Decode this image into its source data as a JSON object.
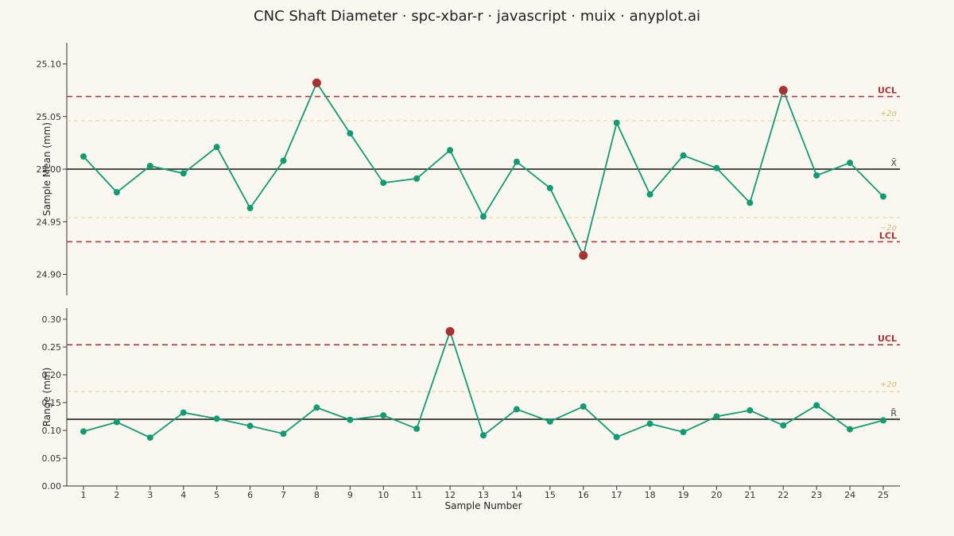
{
  "chart_data": {
    "type": "line",
    "title": "CNC Shaft Diameter · spc-xbar-r · javascript · muix · anyplot.ai",
    "xlabel": "Sample Number",
    "x": [
      1,
      2,
      3,
      4,
      5,
      6,
      7,
      8,
      9,
      10,
      11,
      12,
      13,
      14,
      15,
      16,
      17,
      18,
      19,
      20,
      21,
      22,
      23,
      24,
      25
    ],
    "colors": {
      "series": "#119b73",
      "out_of_control": "#a83232",
      "center": "#333333",
      "control_limit": "#b4383c",
      "sigma": "#e6d49c"
    },
    "xbar": {
      "ylabel": "Sample Mean (mm)",
      "ylim": [
        24.88,
        25.12
      ],
      "yticks": [
        "24.90",
        "24.95",
        "25.00",
        "25.05",
        "25.10"
      ],
      "ytick_values": [
        24.9,
        24.95,
        25.0,
        25.05,
        25.1
      ],
      "values": [
        25.012,
        24.978,
        25.003,
        24.996,
        25.021,
        24.963,
        25.008,
        25.082,
        25.034,
        24.987,
        24.991,
        25.018,
        24.955,
        25.007,
        24.982,
        24.918,
        25.044,
        24.976,
        25.013,
        25.001,
        24.968,
        25.075,
        24.994,
        25.006,
        24.974
      ],
      "out_of_control": [
        8,
        16,
        22
      ],
      "center": 25.0,
      "ucl": 25.069,
      "lcl": 24.931,
      "plus2sigma": 25.046,
      "minus2sigma": 24.954,
      "labels": {
        "ucl": "UCL",
        "lcl": "LCL",
        "plus2sigma": "+2σ",
        "minus2sigma": "−2σ",
        "center": "X̄"
      }
    },
    "range": {
      "ylabel": "Range (mm)",
      "ylim": [
        0.0,
        0.32
      ],
      "yticks": [
        "0.00",
        "0.05",
        "0.10",
        "0.15",
        "0.20",
        "0.25",
        "0.30"
      ],
      "ytick_values": [
        0.0,
        0.05,
        0.1,
        0.15,
        0.2,
        0.25,
        0.3
      ],
      "values": [
        0.098,
        0.115,
        0.087,
        0.132,
        0.121,
        0.108,
        0.094,
        0.141,
        0.119,
        0.127,
        0.103,
        0.278,
        0.091,
        0.138,
        0.116,
        0.143,
        0.088,
        0.112,
        0.097,
        0.125,
        0.136,
        0.109,
        0.145,
        0.102,
        0.118
      ],
      "out_of_control": [
        12
      ],
      "center": 0.12,
      "ucl": 0.254,
      "plus2sigma": 0.17,
      "labels": {
        "ucl": "UCL",
        "plus2sigma": "+2σ",
        "center": "R̄"
      }
    }
  }
}
